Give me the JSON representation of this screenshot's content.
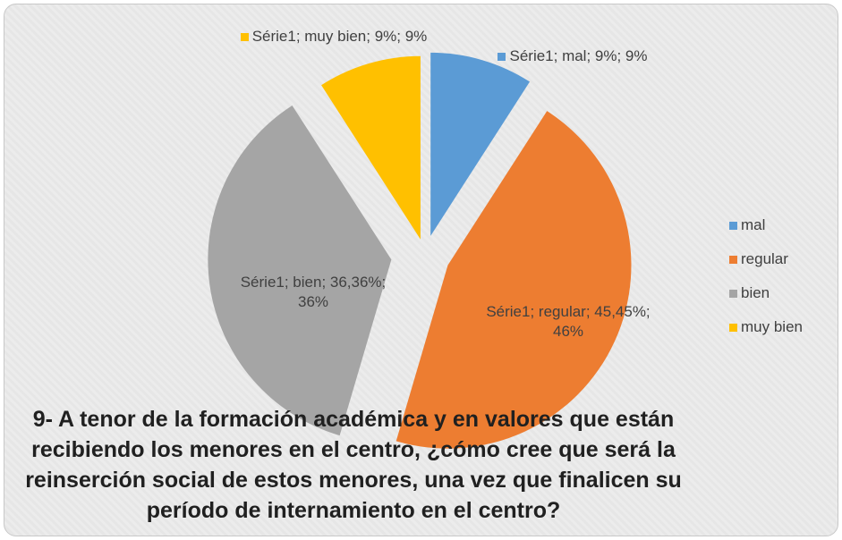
{
  "chart_data": {
    "type": "pie",
    "title": "9- A tenor de la formación académica y en valores que están recibiendo los menores en el centro, ¿cómo cree que será la reinserción social de estos menores, una vez que finalicen su período de internamiento en el centro?",
    "categories": [
      "mal",
      "regular",
      "bien",
      "muy bien"
    ],
    "values": [
      9.09,
      45.45,
      36.36,
      9.09
    ],
    "value_labels": [
      "Série1; mal; 9%; 9%",
      "Série1; regular; 45,45%; 46%",
      "Série1; bien; 36,36%; 36%",
      "Série1; muy bien; 9%; 9%"
    ],
    "colors": [
      "#5b9bd5",
      "#ed7d31",
      "#a5a5a5",
      "#ffc000"
    ],
    "legend": "right"
  }
}
